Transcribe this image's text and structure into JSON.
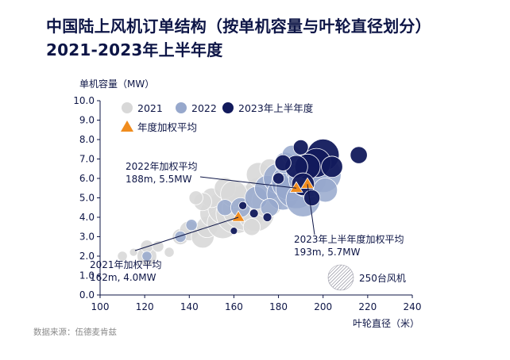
{
  "page": {
    "title_line1": "中国陆上风机订单结构（按单机容量与叶轮直径划分）",
    "title_line2": "2021-2023年上半年度",
    "source": "数据来源：伍德麦肯兹"
  },
  "colors": {
    "2021": "#d8d8d8",
    "2022": "#97a8cc",
    "2023H1": "#121a5c",
    "avg": "#f08c1e",
    "text": "#0d1546"
  },
  "chart_data": {
    "type": "scatter",
    "xlabel": "叶轮直径（米）",
    "ylabel": "单机容量（MW）",
    "xlim": [
      100,
      240
    ],
    "ylim": [
      0.0,
      10.0
    ],
    "xticks": [
      "100",
      "120",
      "140",
      "160",
      "180",
      "200",
      "220",
      "240"
    ],
    "yticks": [
      "0.0",
      "1.0",
      "2.0",
      "3.0",
      "4.0",
      "5.0",
      "6.0",
      "7.0",
      "8.0",
      "9.0",
      "10.0"
    ],
    "legend": {
      "placement": "top",
      "items": [
        {
          "key": "2021",
          "label": "2021"
        },
        {
          "key": "2022",
          "label": "2022"
        },
        {
          "key": "2023H1",
          "label": "2023年上半年度"
        },
        {
          "key": "avg",
          "label": "年度加权平均"
        }
      ],
      "size_legend_label": "250台风机"
    },
    "series": [
      {
        "name": "2021",
        "points": [
          {
            "x": 110,
            "y": 2.0,
            "n": 15
          },
          {
            "x": 115,
            "y": 2.2,
            "n": 10
          },
          {
            "x": 121,
            "y": 2.0,
            "n": 60
          },
          {
            "x": 121,
            "y": 2.5,
            "n": 25
          },
          {
            "x": 126,
            "y": 2.5,
            "n": 20
          },
          {
            "x": 131,
            "y": 2.2,
            "n": 15
          },
          {
            "x": 136,
            "y": 3.0,
            "n": 40
          },
          {
            "x": 140,
            "y": 3.3,
            "n": 60
          },
          {
            "x": 146,
            "y": 3.0,
            "n": 80
          },
          {
            "x": 148,
            "y": 3.5,
            "n": 70
          },
          {
            "x": 151,
            "y": 4.2,
            "n": 120
          },
          {
            "x": 155,
            "y": 3.7,
            "n": 150
          },
          {
            "x": 156,
            "y": 4.5,
            "n": 180
          },
          {
            "x": 161,
            "y": 4.2,
            "n": 250
          },
          {
            "x": 165,
            "y": 4.5,
            "n": 320
          },
          {
            "x": 170,
            "y": 4.2,
            "n": 200
          },
          {
            "x": 172,
            "y": 5.2,
            "n": 180
          },
          {
            "x": 175,
            "y": 4.8,
            "n": 150
          },
          {
            "x": 171,
            "y": 6.2,
            "n": 90
          },
          {
            "x": 176,
            "y": 6.5,
            "n": 60
          },
          {
            "x": 150,
            "y": 5.0,
            "n": 60
          },
          {
            "x": 156,
            "y": 5.5,
            "n": 70
          },
          {
            "x": 160,
            "y": 5.2,
            "n": 110
          },
          {
            "x": 146,
            "y": 4.8,
            "n": 50
          },
          {
            "x": 143,
            "y": 5.0,
            "n": 30
          },
          {
            "x": 168,
            "y": 3.5,
            "n": 45
          }
        ]
      },
      {
        "name": "2022",
        "points": [
          {
            "x": 121,
            "y": 2.0,
            "n": 15
          },
          {
            "x": 136,
            "y": 3.0,
            "n": 20
          },
          {
            "x": 141,
            "y": 3.6,
            "n": 20
          },
          {
            "x": 156,
            "y": 4.5,
            "n": 40
          },
          {
            "x": 163,
            "y": 4.5,
            "n": 60
          },
          {
            "x": 170,
            "y": 5.0,
            "n": 80
          },
          {
            "x": 175,
            "y": 5.5,
            "n": 100
          },
          {
            "x": 180,
            "y": 6.0,
            "n": 140
          },
          {
            "x": 182,
            "y": 5.2,
            "n": 160
          },
          {
            "x": 185,
            "y": 5.8,
            "n": 200
          },
          {
            "x": 188,
            "y": 5.5,
            "n": 260
          },
          {
            "x": 190,
            "y": 6.5,
            "n": 150
          },
          {
            "x": 191,
            "y": 4.9,
            "n": 180
          },
          {
            "x": 193,
            "y": 6.0,
            "n": 220
          },
          {
            "x": 200,
            "y": 6.2,
            "n": 200
          },
          {
            "x": 196,
            "y": 7.0,
            "n": 100
          },
          {
            "x": 183,
            "y": 6.8,
            "n": 70
          },
          {
            "x": 186,
            "y": 7.2,
            "n": 60
          },
          {
            "x": 176,
            "y": 4.5,
            "n": 50
          },
          {
            "x": 201,
            "y": 5.4,
            "n": 90
          }
        ]
      },
      {
        "name": "2023年上半年度",
        "points": [
          {
            "x": 200,
            "y": 7.2,
            "n": 160
          },
          {
            "x": 197,
            "y": 6.8,
            "n": 130
          },
          {
            "x": 193,
            "y": 6.6,
            "n": 100
          },
          {
            "x": 188,
            "y": 6.6,
            "n": 80
          },
          {
            "x": 182,
            "y": 6.8,
            "n": 40
          },
          {
            "x": 204,
            "y": 6.6,
            "n": 70
          },
          {
            "x": 216,
            "y": 7.2,
            "n": 45
          },
          {
            "x": 191,
            "y": 5.7,
            "n": 80
          },
          {
            "x": 195,
            "y": 5.0,
            "n": 40
          },
          {
            "x": 190,
            "y": 7.6,
            "n": 35
          },
          {
            "x": 180,
            "y": 6.0,
            "n": 20
          },
          {
            "x": 175,
            "y": 4.0,
            "n": 12
          },
          {
            "x": 169,
            "y": 4.2,
            "n": 12
          },
          {
            "x": 160,
            "y": 3.3,
            "n": 8
          },
          {
            "x": 164,
            "y": 4.6,
            "n": 10
          }
        ]
      }
    ],
    "weighted_averages": [
      {
        "year": "2021",
        "x": 162,
        "y": 4.0,
        "label_line1": "2021年加权平均",
        "label_line2": "162m, 4.0MW"
      },
      {
        "year": "2022",
        "x": 188,
        "y": 5.5,
        "label_line1": "2022年加权平均",
        "label_line2": "188m, 5.5MW"
      },
      {
        "year": "2023H1",
        "x": 193,
        "y": 5.7,
        "label_line1": "2023年上半年度加权平均",
        "label_line2": "193m, 5.7MW"
      }
    ]
  }
}
